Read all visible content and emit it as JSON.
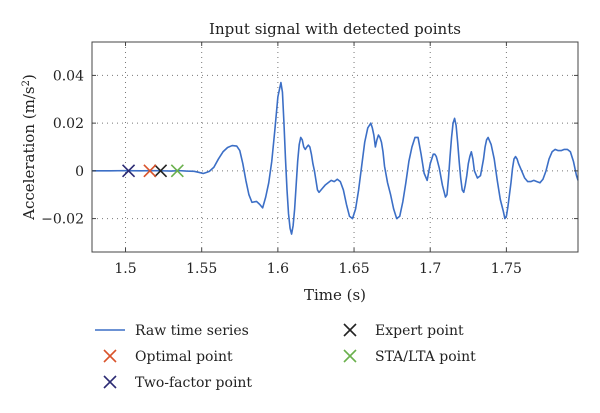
{
  "chart_data": {
    "type": "line",
    "title": "Input signal with detected points",
    "xlabel": "Time (s)",
    "ylabel_main": "Acceleration (m/s",
    "ylabel_sup": "2",
    "ylabel_close": ")",
    "xlim": [
      1.478,
      1.797
    ],
    "ylim": [
      -0.034,
      0.054
    ],
    "grid": true,
    "grid_style": "dotted",
    "x_ticks": [
      1.5,
      1.55,
      1.6,
      1.65,
      1.7,
      1.75
    ],
    "x_tick_labels": [
      "1.5",
      "1.55",
      "1.6",
      "1.65",
      "1.7",
      "1.75"
    ],
    "y_ticks": [
      0.04,
      0.02,
      0,
      -0.02
    ],
    "y_tick_labels": [
      "0.04",
      "0.02",
      "0",
      "−0.02"
    ],
    "series": [
      {
        "name": "Raw time series",
        "color": "#3c6fc6",
        "style": "line",
        "points": [
          [
            1.478,
            0
          ],
          [
            1.49,
            0
          ],
          [
            1.5,
            0.0001
          ],
          [
            1.51,
            0
          ],
          [
            1.52,
            0.0001
          ],
          [
            1.53,
            -0.0001
          ],
          [
            1.535,
            0.0001
          ],
          [
            1.54,
            -0.0001
          ],
          [
            1.545,
            -0.0002
          ],
          [
            1.548,
            -0.0006
          ],
          [
            1.551,
            -0.0011
          ],
          [
            1.553,
            -0.0007
          ],
          [
            1.555,
            -0.0002
          ],
          [
            1.558,
            0.0015
          ],
          [
            1.561,
            0.005
          ],
          [
            1.564,
            0.008
          ],
          [
            1.567,
            0.0098
          ],
          [
            1.57,
            0.0106
          ],
          [
            1.573,
            0.0104
          ],
          [
            1.575,
            0.0085
          ],
          [
            1.577,
            0.003
          ],
          [
            1.579,
            -0.004
          ],
          [
            1.581,
            -0.01
          ],
          [
            1.583,
            -0.0132
          ],
          [
            1.586,
            -0.0128
          ],
          [
            1.588,
            -0.014
          ],
          [
            1.59,
            -0.0155
          ],
          [
            1.592,
            -0.011
          ],
          [
            1.594,
            -0.005
          ],
          [
            1.596,
            0.004
          ],
          [
            1.598,
            0.017
          ],
          [
            1.6,
            0.031
          ],
          [
            1.602,
            0.037
          ],
          [
            1.603,
            0.033
          ],
          [
            1.604,
            0.02
          ],
          [
            1.605,
            0.005
          ],
          [
            1.606,
            -0.008
          ],
          [
            1.607,
            -0.018
          ],
          [
            1.608,
            -0.024
          ],
          [
            1.609,
            -0.0265
          ],
          [
            1.61,
            -0.023
          ],
          [
            1.611,
            -0.016
          ],
          [
            1.612,
            -0.006
          ],
          [
            1.613,
            0.004
          ],
          [
            1.614,
            0.011
          ],
          [
            1.615,
            0.014
          ],
          [
            1.616,
            0.013
          ],
          [
            1.617,
            0.01
          ],
          [
            1.618,
            0.009
          ],
          [
            1.619,
            0.01
          ],
          [
            1.62,
            0.0108
          ],
          [
            1.621,
            0.01
          ],
          [
            1.622,
            0.007
          ],
          [
            1.623,
            0.003
          ],
          [
            1.624,
            0.0
          ],
          [
            1.625,
            -0.004
          ],
          [
            1.626,
            -0.008
          ],
          [
            1.627,
            -0.009
          ],
          [
            1.629,
            -0.0075
          ],
          [
            1.631,
            -0.006
          ],
          [
            1.633,
            -0.005
          ],
          [
            1.635,
            -0.004
          ],
          [
            1.637,
            -0.0045
          ],
          [
            1.639,
            -0.0035
          ],
          [
            1.641,
            -0.0045
          ],
          [
            1.643,
            -0.008
          ],
          [
            1.645,
            -0.014
          ],
          [
            1.647,
            -0.019
          ],
          [
            1.649,
            -0.02
          ],
          [
            1.651,
            -0.016
          ],
          [
            1.653,
            -0.008
          ],
          [
            1.655,
            0.002
          ],
          [
            1.657,
            0.012
          ],
          [
            1.659,
            0.018
          ],
          [
            1.661,
            0.02
          ],
          [
            1.662,
            0.018
          ],
          [
            1.663,
            0.015
          ],
          [
            1.664,
            0.01
          ],
          [
            1.665,
            0.013
          ],
          [
            1.666,
            0.015
          ],
          [
            1.667,
            0.014
          ],
          [
            1.668,
            0.012
          ],
          [
            1.669,
            0.008
          ],
          [
            1.67,
            0.002
          ],
          [
            1.672,
            -0.005
          ],
          [
            1.674,
            -0.01
          ],
          [
            1.676,
            -0.016
          ],
          [
            1.678,
            -0.02
          ],
          [
            1.68,
            -0.019
          ],
          [
            1.682,
            -0.013
          ],
          [
            1.684,
            -0.005
          ],
          [
            1.686,
            0.004
          ],
          [
            1.688,
            0.01
          ],
          [
            1.69,
            0.014
          ],
          [
            1.692,
            0.014
          ],
          [
            1.694,
            0.007
          ],
          [
            1.696,
            -0.001
          ],
          [
            1.698,
            -0.004
          ],
          [
            1.7,
            0.003
          ],
          [
            1.702,
            0.007
          ],
          [
            1.703,
            0.007
          ],
          [
            1.704,
            0.006
          ],
          [
            1.706,
            0.001
          ],
          [
            1.708,
            -0.006
          ],
          [
            1.71,
            -0.011
          ],
          [
            1.711,
            -0.01
          ],
          [
            1.712,
            -0.003
          ],
          [
            1.713,
            0.006
          ],
          [
            1.714,
            0.014
          ],
          [
            1.715,
            0.02
          ],
          [
            1.716,
            0.022
          ],
          [
            1.717,
            0.019
          ],
          [
            1.718,
            0.012
          ],
          [
            1.719,
            0.004
          ],
          [
            1.72,
            -0.003
          ],
          [
            1.721,
            -0.008
          ],
          [
            1.722,
            -0.009
          ],
          [
            1.723,
            -0.006
          ],
          [
            1.724,
            -0.002
          ],
          [
            1.725,
            0.003
          ],
          [
            1.726,
            0.006
          ],
          [
            1.727,
            0.008
          ],
          [
            1.728,
            0.005
          ],
          [
            1.729,
            0.0
          ],
          [
            1.731,
            -0.003
          ],
          [
            1.733,
            -0.002
          ],
          [
            1.735,
            0.005
          ],
          [
            1.736,
            0.01
          ],
          [
            1.737,
            0.013
          ],
          [
            1.738,
            0.014
          ],
          [
            1.74,
            0.011
          ],
          [
            1.742,
            0.005
          ],
          [
            1.744,
            -0.004
          ],
          [
            1.746,
            -0.012
          ],
          [
            1.748,
            -0.017
          ],
          [
            1.749,
            -0.02
          ],
          [
            1.75,
            -0.019
          ],
          [
            1.751,
            -0.015
          ],
          [
            1.752,
            -0.01
          ],
          [
            1.753,
            -0.005
          ],
          [
            1.754,
            0.001
          ],
          [
            1.755,
            0.005
          ],
          [
            1.756,
            0.006
          ],
          [
            1.757,
            0.005
          ],
          [
            1.758,
            0.003
          ],
          [
            1.76,
            0.0
          ],
          [
            1.762,
            -0.003
          ],
          [
            1.764,
            -0.0045
          ],
          [
            1.766,
            -0.0045
          ],
          [
            1.768,
            -0.004
          ],
          [
            1.77,
            -0.0045
          ],
          [
            1.772,
            -0.005
          ],
          [
            1.774,
            -0.0035
          ],
          [
            1.776,
            0.0
          ],
          [
            1.778,
            0.005
          ],
          [
            1.78,
            0.008
          ],
          [
            1.782,
            0.009
          ],
          [
            1.784,
            0.0085
          ],
          [
            1.786,
            0.0085
          ],
          [
            1.788,
            0.009
          ],
          [
            1.79,
            0.009
          ],
          [
            1.792,
            0.008
          ],
          [
            1.794,
            0.004
          ],
          [
            1.796,
            -0.002
          ],
          [
            1.797,
            -0.004
          ]
        ]
      }
    ],
    "points": [
      {
        "name": "Expert point",
        "x": 1.523,
        "y": 0,
        "color": "#222222"
      },
      {
        "name": "Optimal point",
        "x": 1.516,
        "y": 0,
        "color": "#d9532b"
      },
      {
        "name": "Two-factor point",
        "x": 1.502,
        "y": 0,
        "color": "#2b2a73"
      },
      {
        "name": "STA/LTA point",
        "x": 1.534,
        "y": 0,
        "color": "#6ab04c"
      }
    ],
    "legend": {
      "placement": "bottom",
      "entries": [
        {
          "label": "Raw time series",
          "marker": "line",
          "color": "#3c6fc6"
        },
        {
          "label": "Expert point",
          "marker": "x",
          "color": "#222222"
        },
        {
          "label": "Optimal point",
          "marker": "x",
          "color": "#d9532b"
        },
        {
          "label": "STA/LTA point",
          "marker": "x",
          "color": "#6ab04c"
        },
        {
          "label": "Two-factor point",
          "marker": "x",
          "color": "#2b2a73"
        }
      ]
    }
  }
}
